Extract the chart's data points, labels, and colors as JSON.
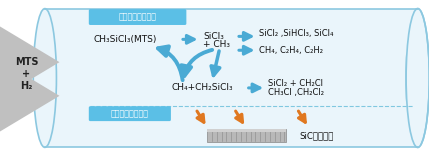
{
  "tube_color": "#8cc8e0",
  "tube_bg": "#eaf5fb",
  "blue": "#4aaad4",
  "orange": "#e07820",
  "gray": "#b0b0b0",
  "tc": "#111111",
  "bg": "#ffffff",
  "label_gas": "気相での原料分解",
  "label_surf": "表面での製膜反応",
  "label_mts": "MTS\n+\nH₂",
  "label_felt": "SiCフェルト",
  "text1": "CH₃SiCl₃(MTS)",
  "text2a": "SiCl₃",
  "text2b": "+ CH₃",
  "text3a": "SiCl₂ ,SiHCl₃, SiCl₄",
  "text3b": "CH₄, C₂H₄, C₂H₂",
  "text4": "CH₄+CH₂SiCl₃",
  "text5a": "SiCl₂ + CH₂Cl",
  "text5b": "CH₃Cl ,CH₂Cl₂"
}
